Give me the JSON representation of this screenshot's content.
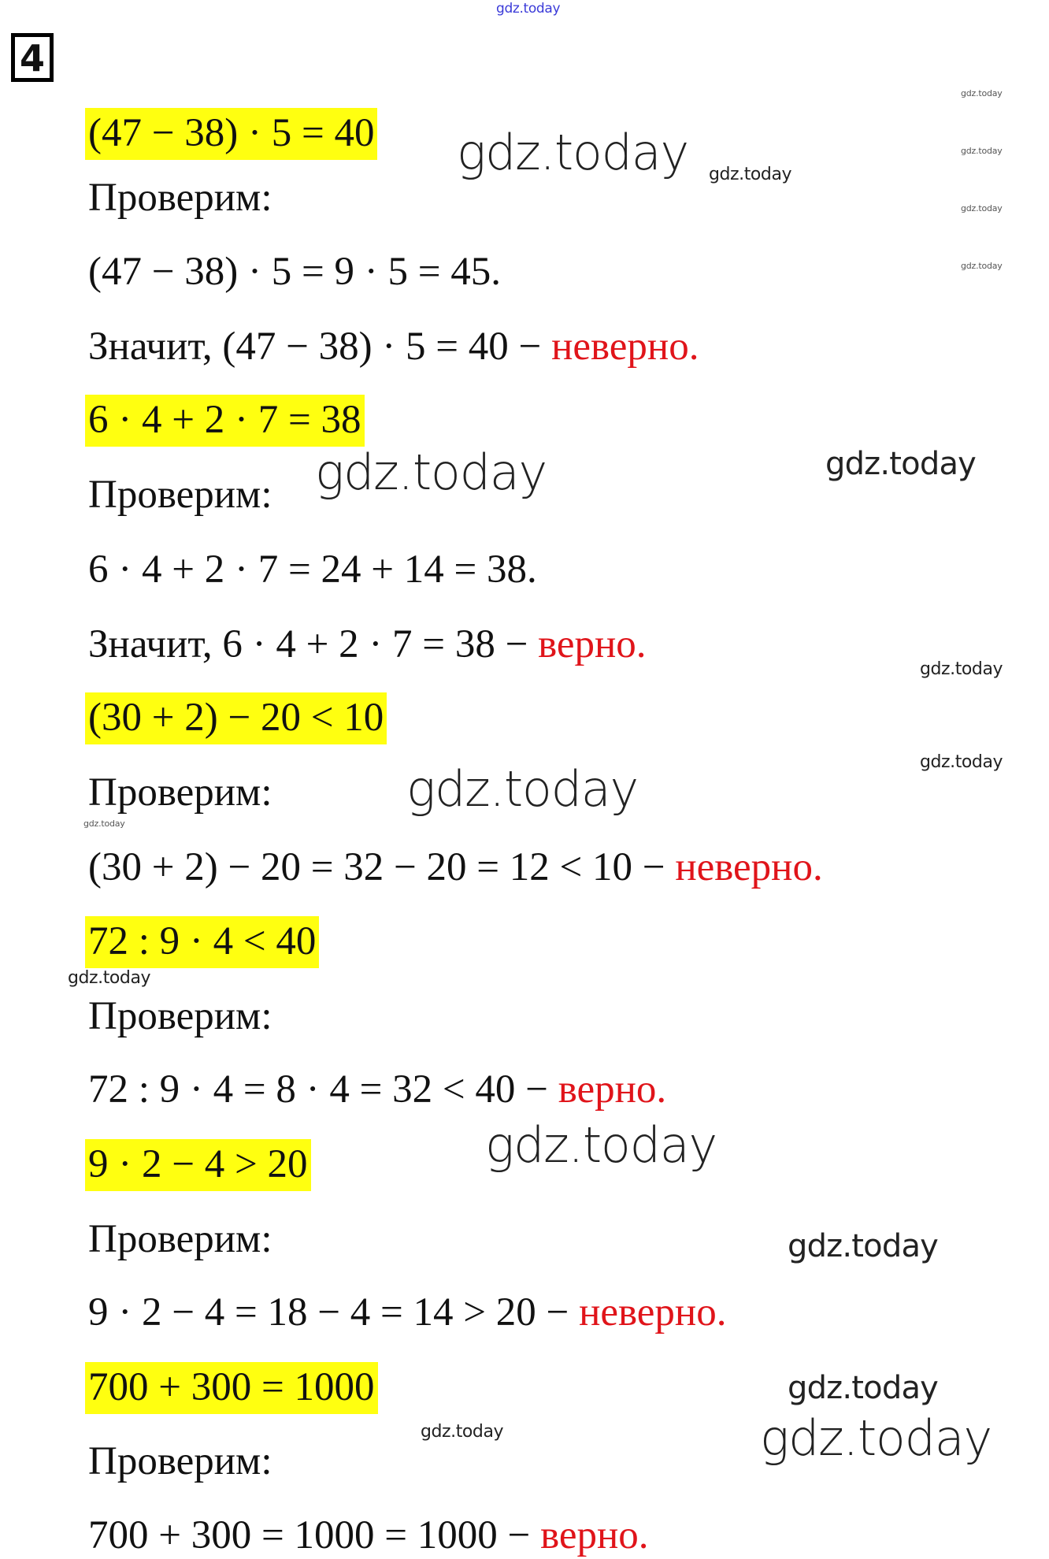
{
  "header": {
    "watermark_top": "gdz.today",
    "task_number": "4"
  },
  "lines": [
    {
      "text": "(47 − 38) · 5 = 40",
      "highlight": true
    },
    {
      "text": "Проверим:"
    },
    {
      "text": "(47 − 38) · 5 = 9 · 5 = 45."
    },
    {
      "text": "Значит, (47 − 38) · 5 = 40 − ",
      "verdict": "неверно."
    },
    {
      "text": "6 · 4 + 2 · 7 = 38",
      "highlight": true
    },
    {
      "text": "Проверим:"
    },
    {
      "text": "6 · 4 + 2 · 7 = 24 + 14 = 38."
    },
    {
      "text": "Значит, 6 · 4 + 2 · 7 = 38 − ",
      "verdict": "верно."
    },
    {
      "text": "(30 + 2) − 20 < 10",
      "highlight": true
    },
    {
      "text": "Проверим:"
    },
    {
      "text": "(30 + 2) − 20 = 32 − 20 = 12 < 10 − ",
      "verdict": "неверно."
    },
    {
      "text": "72 : 9 · 4 < 40",
      "highlight": true
    },
    {
      "text": "Проверим:"
    },
    {
      "text": "72 : 9 · 4 = 8 · 4 = 32 < 40 − ",
      "verdict": "верно."
    },
    {
      "text": "9 · 2 − 4 > 20",
      "highlight": true
    },
    {
      "text": "Проверим:"
    },
    {
      "text": "9 · 2 − 4 = 18 − 4 = 14 > 20 − ",
      "verdict": "неверно."
    },
    {
      "text": "700 + 300 = 1000",
      "highlight": true
    },
    {
      "text": "Проверим:"
    },
    {
      "text": "700 + 300 = 1000 = 1000 − ",
      "verdict": "верно."
    }
  ],
  "watermark": "gdz.today",
  "colors": {
    "highlight": "#ffff10",
    "verdict": "#e0141a"
  }
}
